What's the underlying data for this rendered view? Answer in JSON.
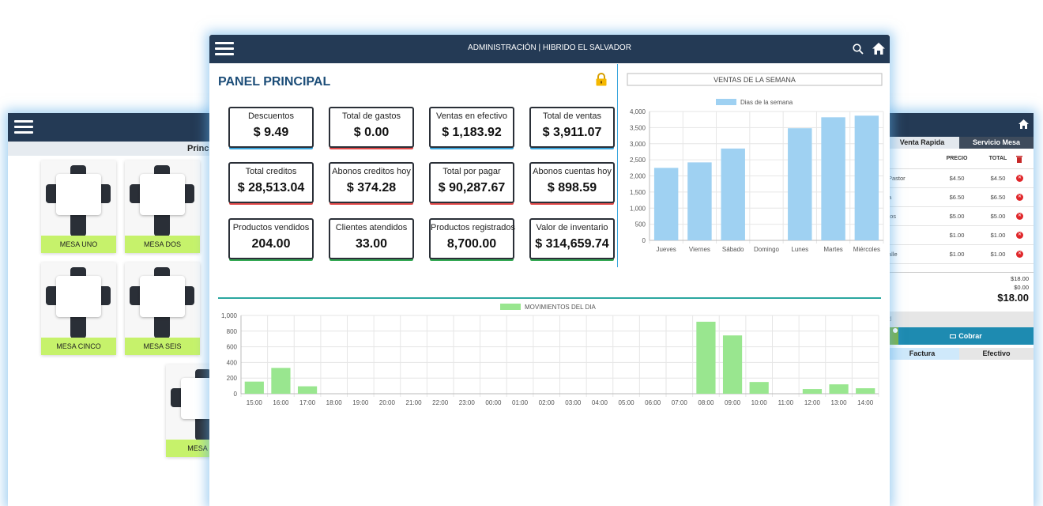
{
  "left_window": {
    "subbar_title": "Princip",
    "tables": [
      "MESA UNO",
      "MESA DOS",
      "MESA CINCO",
      "MESA SEIS",
      "MESA NU"
    ]
  },
  "right_window": {
    "tabs": [
      "Venta Rapida",
      "Servicio Mesa"
    ],
    "columns": [
      "PRECIO",
      "TOTAL"
    ],
    "rows": [
      {
        "name": "Pastor",
        "precio": "$4.50",
        "total": "$4.50"
      },
      {
        "name": "a",
        "precio": "$6.50",
        "total": "$6.50"
      },
      {
        "name": "tos",
        "precio": "$5.00",
        "total": "$5.00"
      },
      {
        "name": "",
        "precio": "$1.00",
        "total": "$1.00"
      },
      {
        "name": "alle",
        "precio": "$1.00",
        "total": "$1.00"
      }
    ],
    "subtotal": "$18.00",
    "extra": "$0.00",
    "total": "$18.00",
    "input_partial": "d",
    "charge_label": "Cobrar",
    "payment_tabs": [
      "Factura",
      "Efectivo"
    ]
  },
  "main_window": {
    "header_title": "ADMINISTRACIÓN | HIBRIDO EL SALVADOR",
    "panel_title": "PANEL PRINCIPAL",
    "stats": [
      {
        "label": "Descuentos",
        "value": "$ 9.49",
        "accent": "#3aa6dd"
      },
      {
        "label": "Total de gastos",
        "value": "$ 0.00",
        "accent": "#e24a4a"
      },
      {
        "label": "Ventas en efectivo",
        "value": "$ 1,183.92",
        "accent": "#3aa6dd"
      },
      {
        "label": "Total de ventas",
        "value": "$ 3,911.07",
        "accent": "#3aa6dd"
      },
      {
        "label": "Total creditos",
        "value": "$ 28,513.04",
        "accent": "#e24a4a"
      },
      {
        "label": "Abonos creditos hoy",
        "value": "$ 374.28",
        "accent": "#e24a4a"
      },
      {
        "label": "Total por pagar",
        "value": "$ 90,287.67",
        "accent": "#e24a4a"
      },
      {
        "label": "Abonos cuentas hoy",
        "value": "$ 898.59",
        "accent": "#e24a4a"
      },
      {
        "label": "Productos vendidos",
        "value": "204.00",
        "accent": "#34a853"
      },
      {
        "label": "Clientes atendidos",
        "value": "33.00",
        "accent": "#34a853"
      },
      {
        "label": "Productos registrados",
        "value": "8,700.00",
        "accent": "#34a853"
      },
      {
        "label": "Valor de inventario",
        "value": "$ 314,659.74",
        "accent": "#34a853"
      }
    ]
  },
  "chart_data": [
    {
      "type": "bar",
      "title": "VENTAS DE LA SEMANA",
      "legend": "Dias de la semana",
      "legend_position": "top",
      "categories": [
        "Jueves",
        "Viernes",
        "Sábado",
        "Domingo",
        "Lunes",
        "Martes",
        "Miércoles"
      ],
      "values": [
        2250,
        2420,
        2850,
        0,
        3480,
        3820,
        3870
      ],
      "ylim": [
        0,
        4000
      ],
      "yticks": [
        "0",
        "500",
        "1,000",
        "1,500",
        "2,000",
        "2,500",
        "3,000",
        "3,500",
        "4,000"
      ],
      "grid": true,
      "color": "#9fd1f2"
    },
    {
      "type": "bar",
      "legend": "MOVIMIENTOS DEL DIA",
      "legend_position": "top",
      "categories": [
        "15:00",
        "16:00",
        "17:00",
        "18:00",
        "19:00",
        "20:00",
        "21:00",
        "22:00",
        "23:00",
        "00:00",
        "01:00",
        "02:00",
        "03:00",
        "04:00",
        "05:00",
        "06:00",
        "07:00",
        "08:00",
        "09:00",
        "10:00",
        "11:00",
        "12:00",
        "13:00",
        "14:00"
      ],
      "values": [
        155,
        330,
        95,
        0,
        0,
        0,
        0,
        0,
        0,
        0,
        0,
        0,
        0,
        0,
        0,
        0,
        0,
        920,
        745,
        150,
        0,
        60,
        120,
        70
      ],
      "ylim": [
        0,
        1000
      ],
      "yticks": [
        "0",
        "200",
        "400",
        "600",
        "800",
        "1,000"
      ],
      "grid": true,
      "color": "#99e68f"
    }
  ]
}
